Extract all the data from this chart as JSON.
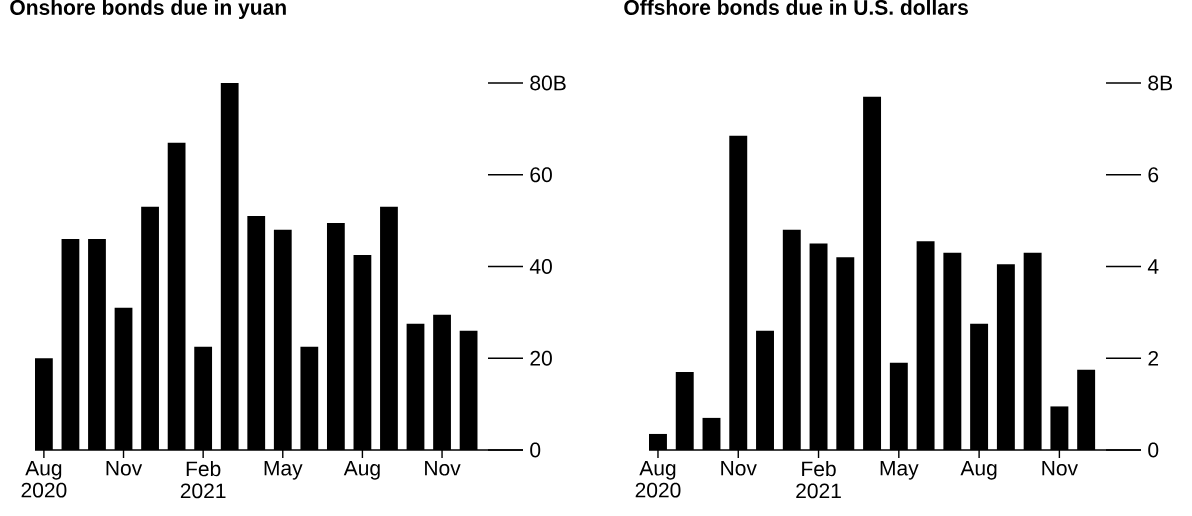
{
  "chart_data": [
    {
      "type": "bar",
      "title": "Onshore bonds due in yuan",
      "categories": [
        "Aug 2020",
        null,
        null,
        "Nov",
        null,
        null,
        "Feb 2021",
        null,
        null,
        "May",
        null,
        null,
        "Aug",
        null,
        null,
        "Nov",
        null
      ],
      "values": [
        20,
        46,
        46,
        31,
        53,
        67,
        22.5,
        80,
        51,
        48,
        22.5,
        49.5,
        42.5,
        53,
        27.5,
        29.5,
        26
      ],
      "color": "#000000",
      "ylim": [
        0,
        80
      ],
      "yticks": [
        0,
        20,
        40,
        60,
        {
          "value": 80,
          "label": "80B"
        }
      ]
    },
    {
      "type": "bar",
      "title": "Offshore bonds due in U.S. dollars",
      "categories": [
        "Aug 2020",
        null,
        null,
        "Nov",
        null,
        null,
        "Feb 2021",
        null,
        null,
        "May",
        null,
        null,
        "Aug",
        null,
        null,
        "Nov",
        null
      ],
      "values": [
        0.35,
        1.7,
        0.7,
        6.85,
        2.6,
        4.8,
        4.5,
        4.2,
        7.7,
        1.9,
        4.55,
        4.3,
        2.75,
        4.05,
        4.3,
        0.95,
        1.75
      ],
      "color": "#000000",
      "ylim": [
        0,
        8
      ],
      "yticks": [
        0,
        2,
        4,
        6,
        {
          "value": 8,
          "label": "8B"
        }
      ]
    }
  ]
}
